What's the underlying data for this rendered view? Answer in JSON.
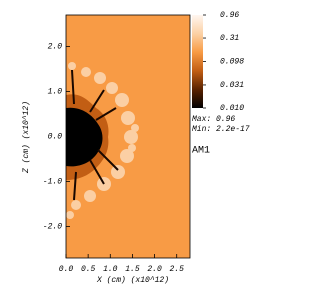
{
  "chart_data": {
    "type": "heatmap",
    "xlabel": "X (cm) (x10^12)",
    "ylabel": "Z (cm) (x10^12)",
    "xlim": [
      0,
      2.8
    ],
    "ylim": [
      -2.7,
      2.7
    ],
    "xticks": [
      {
        "value": 0,
        "label": "0.0"
      },
      0.5,
      {
        "value": 1,
        "label": "1.0"
      },
      1.5,
      {
        "value": 2,
        "label": "2.0"
      },
      2.5
    ],
    "yticks": [
      {
        "value": 2,
        "label": "2.0"
      },
      {
        "value": 1,
        "label": "1.0"
      },
      {
        "value": 0,
        "label": "0.0"
      },
      {
        "value": -1,
        "label": "-1.0"
      },
      {
        "value": -2,
        "label": "-2.0"
      }
    ],
    "background_color": "#f89b45",
    "colorbar": {
      "scale": "log",
      "lim": [
        0.01,
        0.96
      ],
      "ticks": [
        0.96,
        0.31,
        0.098,
        0.031,
        {
          "value": 0.01,
          "label": "0.010"
        }
      ],
      "colors": [
        "#000000",
        "#5a2200",
        "#c25e14",
        "#f89b45",
        "#fbd1a6",
        "#fff6f0"
      ]
    },
    "annotations": [
      "Max:  0.96",
      "Min:  2.2e-17",
      "AM1"
    ]
  }
}
